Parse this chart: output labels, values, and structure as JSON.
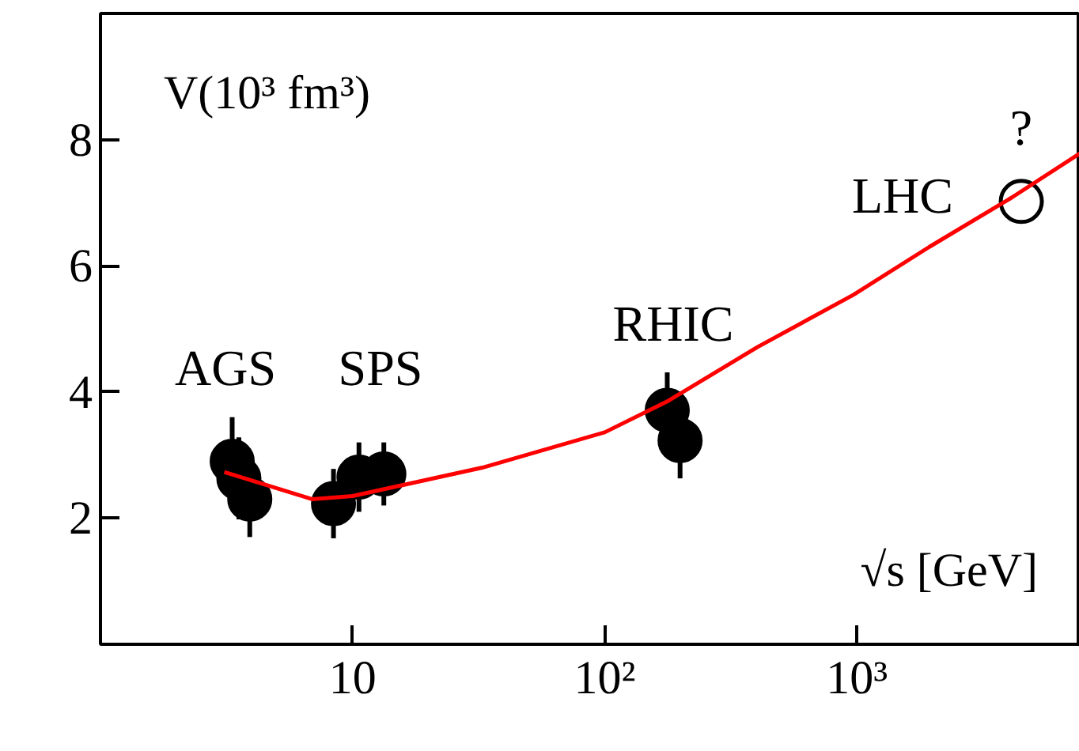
{
  "chart_data": {
    "type": "scatter",
    "xlabel": "√s  [GeV]",
    "ylabel": "V(10³ fm³)",
    "log": "x",
    "grid": false,
    "xlim": [
      1,
      7660
    ],
    "ylim": [
      0,
      10
    ],
    "xticks": [
      {
        "value": 10,
        "label": "10"
      },
      {
        "value": 100,
        "label": "10²"
      },
      {
        "value": 1000,
        "label": "10³"
      }
    ],
    "yticks": [
      2,
      4,
      6,
      8
    ],
    "series": [
      {
        "color": "#000000",
        "marker": "circle",
        "x": [
          3.33,
          3.54,
          3.91,
          8.4,
          10.6,
          13.3,
          177,
          199
        ],
        "values": [
          2.9,
          2.63,
          2.3,
          2.23,
          2.65,
          2.7,
          3.71,
          3.23
        ],
        "errors": [
          0.7,
          0.65,
          0.6,
          0.55,
          0.55,
          0.5,
          0.6,
          0.6
        ]
      },
      {
        "color": "#000000",
        "marker": "circle_open",
        "x": [
          4490
        ],
        "values": [
          7.02
        ]
      },
      {
        "type": "line",
        "color": "#ff0000",
        "line_style": "solid",
        "x": [
          3.1,
          6.9,
          10,
          32.7,
          100,
          179,
          403,
          970,
          1940,
          4110,
          7660
        ],
        "values": [
          2.73,
          2.3,
          2.35,
          2.8,
          3.36,
          3.86,
          4.71,
          5.54,
          6.3,
          7.08,
          7.78
        ]
      }
    ],
    "annotations": [
      "AGS",
      "SPS",
      "RHIC",
      "LHC",
      "?"
    ]
  }
}
